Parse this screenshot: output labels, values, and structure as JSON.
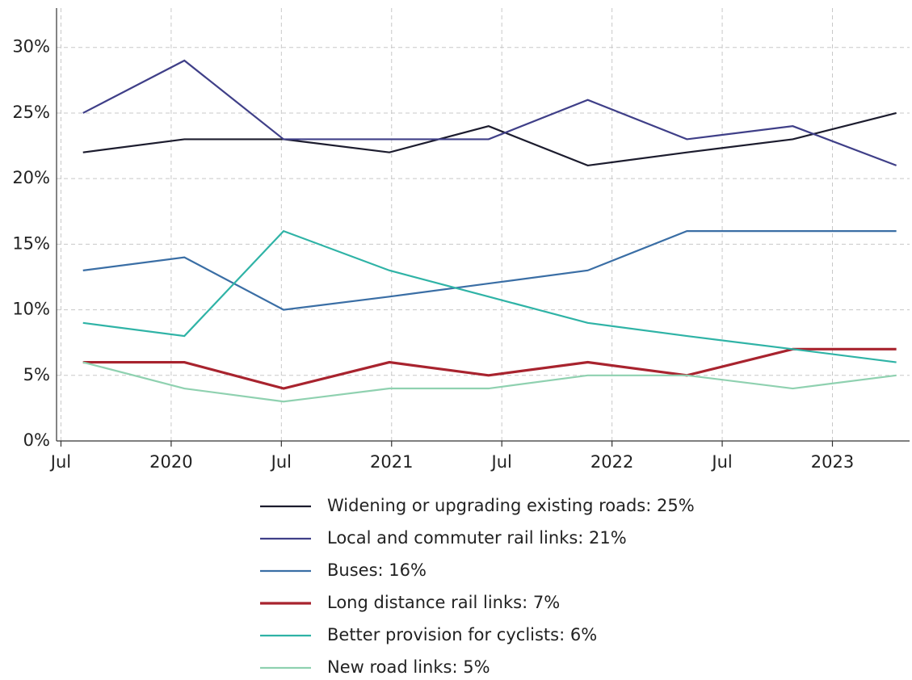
{
  "chart_data": {
    "type": "line",
    "x": [
      2019.6,
      2020.06,
      2020.51,
      2020.99,
      2021.44,
      2021.89,
      2022.34,
      2022.82,
      2023.29
    ],
    "xlim": [
      2019.48,
      2023.35
    ],
    "xticks": [
      {
        "value": 2019.5,
        "label": "Jul"
      },
      2020,
      {
        "value": 2020.5,
        "label": "Jul"
      },
      2021,
      {
        "value": 2021.5,
        "label": "Jul"
      },
      2022,
      {
        "value": 2022.5,
        "label": "Jul"
      },
      2023
    ],
    "ylim": [
      0,
      33
    ],
    "yticks": [
      {
        "value": 0,
        "label": "0%"
      },
      {
        "value": 5,
        "label": "5%"
      },
      {
        "value": 10,
        "label": "10%"
      },
      {
        "value": 15,
        "label": "15%"
      },
      {
        "value": 20,
        "label": "20%"
      },
      {
        "value": 25,
        "label": "25%"
      },
      {
        "value": 30,
        "label": "30%"
      }
    ],
    "grid": true,
    "series": [
      {
        "name": "Widening or upgrading existing roads: 25%",
        "color": "#1c1c2e",
        "values": [
          22,
          23,
          23,
          22,
          24,
          21,
          22,
          23,
          25
        ]
      },
      {
        "name": "Local and commuter rail links: 21%",
        "color": "#3f3f88",
        "values": [
          25,
          29,
          23,
          23,
          23,
          26,
          23,
          24,
          21
        ]
      },
      {
        "name": "Buses: 16%",
        "color": "#3a6ea5",
        "values": [
          13,
          14,
          10,
          11,
          12,
          13,
          16,
          16,
          16
        ]
      },
      {
        "name": "Long distance rail links: 7%",
        "color": "#a8232e",
        "values": [
          6,
          6,
          4,
          6,
          5,
          6,
          5,
          7,
          7
        ]
      },
      {
        "name": "Better provision for cyclists: 6%",
        "color": "#2fb3a6",
        "values": [
          9,
          8,
          16,
          13,
          11,
          9,
          8,
          7,
          6
        ]
      },
      {
        "name": "New road links: 5%",
        "color": "#8fd1b0",
        "values": [
          6,
          4,
          3,
          4,
          4,
          5,
          5,
          4,
          5
        ]
      }
    ]
  }
}
